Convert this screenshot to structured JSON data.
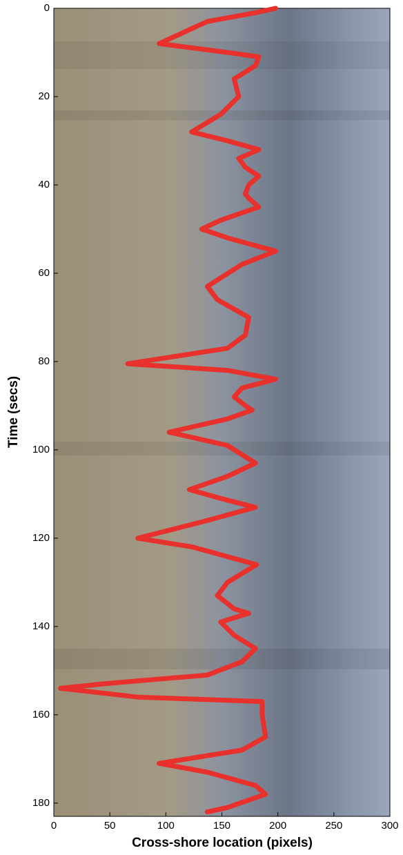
{
  "chart_data": {
    "type": "line",
    "xlabel": "Cross-shore location (pixels)",
    "ylabel": "Time (secs)",
    "xlim": [
      0,
      300
    ],
    "xticks": [
      0,
      50,
      100,
      150,
      200,
      250,
      300
    ],
    "ylim": [
      0,
      183
    ],
    "yticks": [
      0,
      20,
      40,
      60,
      80,
      100,
      120,
      140,
      160,
      180
    ],
    "y_inverted": true,
    "color": "#e8302c",
    "x": [
      198,
      180,
      137,
      94,
      155,
      183,
      180,
      161,
      165,
      149,
      123,
      155,
      183,
      165,
      171,
      183,
      174,
      171,
      174,
      183,
      149,
      132,
      155,
      198,
      168,
      137,
      146,
      174,
      171,
      155,
      66,
      155,
      198,
      168,
      161,
      171,
      177,
      155,
      103,
      155,
      180,
      155,
      121,
      149,
      180,
      137,
      75,
      124,
      181,
      155,
      146,
      161,
      174,
      149,
      161,
      180,
      168,
      137,
      44,
      6,
      75,
      186,
      186,
      189,
      168,
      94,
      137,
      180,
      189,
      155,
      137
    ],
    "values": [
      0,
      1,
      3,
      8,
      10,
      11,
      13,
      16,
      20,
      24,
      28,
      30,
      32,
      34,
      36,
      38,
      40,
      42,
      43,
      45,
      48,
      50,
      52,
      55,
      58,
      63,
      66,
      70,
      74,
      77,
      80.5,
      82,
      84,
      86,
      88,
      90,
      91,
      93,
      96,
      99,
      103,
      106,
      109,
      111,
      113,
      116,
      120,
      122,
      126,
      130,
      133,
      136,
      137,
      139,
      142,
      145,
      148,
      151,
      153,
      154,
      156,
      157,
      160,
      165,
      168,
      171,
      173,
      176,
      178,
      181,
      182
    ]
  }
}
